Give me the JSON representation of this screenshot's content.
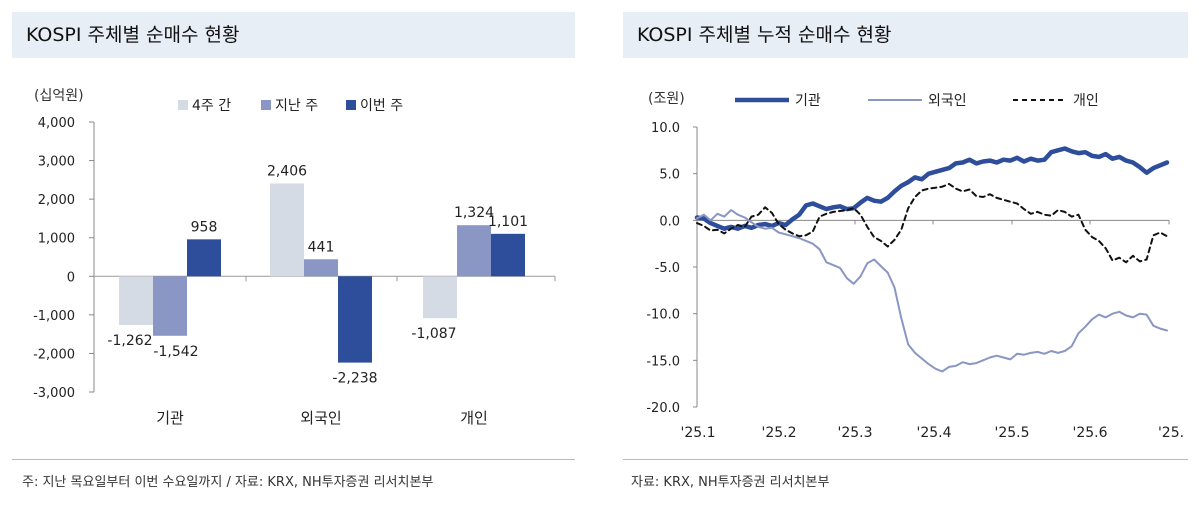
{
  "left": {
    "title": "KOSPI 주체별 순매수 현황",
    "unit": "(십억원)",
    "footnote": "주: 지난 목요일부터 이번 수요일까지 / 자료: KRX, NH투자증권 리서치본부"
  },
  "right": {
    "title": "KOSPI 주체별 누적 순매수 현황",
    "unit": "(조원)",
    "footnote": "자료: KRX, NH투자증권 리서치본부"
  },
  "colors": {
    "four_weeks": "#d5dbe4",
    "last_week": "#8a96c4",
    "this_week": "#2e4e9b",
    "institution": "#2e4e9b",
    "foreign": "#8a96c4",
    "individual": "#111111"
  },
  "chart_data": [
    {
      "type": "bar",
      "categories": [
        "기관",
        "외국인",
        "개인"
      ],
      "series": [
        {
          "name": "4주 간",
          "values": [
            -1262,
            2406,
            -1087
          ]
        },
        {
          "name": "지난 주",
          "values": [
            -1542,
            441,
            1324
          ]
        },
        {
          "name": "이번 주",
          "values": [
            958,
            -2238,
            1101
          ]
        }
      ],
      "data_labels": [
        [
          "-1,262",
          "2,406",
          "-1,087"
        ],
        [
          "-1,542",
          "441",
          "1,324"
        ],
        [
          "958",
          "-2,238",
          "1,101"
        ]
      ],
      "ylim": [
        -3000,
        4000
      ],
      "yticks": [
        4000,
        3000,
        2000,
        1000,
        0,
        -1000,
        -2000,
        -3000
      ],
      "ytick_labels": [
        "4,000",
        "3,000",
        "2,000",
        "1,000",
        "0",
        "-1,000",
        "-2,000",
        "-3,000"
      ],
      "legend": "top"
    },
    {
      "type": "line",
      "x_labels": [
        "'25.1",
        "'25.2",
        "'25.3",
        "'25.4",
        "'25.5",
        "'25.6",
        "'25."
      ],
      "ylim": [
        -20,
        10
      ],
      "yticks": [
        10,
        5,
        0,
        -5,
        -10,
        -15,
        -20
      ],
      "ytick_labels": [
        "10.0",
        "5.0",
        "0.0",
        "-5.0",
        "-10.0",
        "-15.0",
        "-20.0"
      ],
      "legend": "top",
      "series": [
        {
          "name": "기관",
          "values": [
            0.3,
            0.2,
            -0.3,
            -0.6,
            -0.9,
            -0.7,
            -0.9,
            -0.6,
            -0.8,
            -0.5,
            -0.4,
            -0.6,
            -0.3,
            -0.5,
            0.1,
            0.6,
            1.6,
            1.8,
            1.5,
            1.2,
            1.4,
            1.5,
            1.2,
            1.3,
            1.9,
            2.4,
            2.1,
            2.0,
            2.4,
            3.1,
            3.7,
            4.1,
            4.6,
            4.4,
            5.0,
            5.2,
            5.4,
            5.6,
            6.1,
            6.2,
            6.5,
            6.1,
            6.3,
            6.4,
            6.2,
            6.5,
            6.4,
            6.7,
            6.3,
            6.6,
            6.4,
            6.5,
            7.3,
            7.5,
            7.7,
            7.4,
            7.2,
            7.3,
            6.9,
            6.8,
            7.1,
            6.6,
            6.8,
            6.4,
            6.2,
            5.7,
            5.1,
            5.6,
            5.9,
            6.2
          ]
        },
        {
          "name": "외국인",
          "values": [
            0.2,
            0.6,
            0.0,
            0.7,
            0.4,
            1.1,
            0.6,
            0.3,
            -0.2,
            -0.7,
            -0.9,
            -0.8,
            -1.3,
            -1.5,
            -1.7,
            -1.9,
            -2.2,
            -2.5,
            -3.1,
            -4.5,
            -4.8,
            -5.1,
            -6.2,
            -6.8,
            -6.0,
            -4.6,
            -4.2,
            -4.9,
            -5.6,
            -7.2,
            -10.5,
            -13.3,
            -14.2,
            -14.8,
            -15.4,
            -15.9,
            -16.2,
            -15.7,
            -15.6,
            -15.2,
            -15.4,
            -15.3,
            -15.0,
            -14.7,
            -14.5,
            -14.7,
            -14.9,
            -14.3,
            -14.4,
            -14.2,
            -14.1,
            -14.3,
            -14.0,
            -14.2,
            -14.0,
            -13.5,
            -12.1,
            -11.4,
            -10.6,
            -10.1,
            -10.4,
            -10.0,
            -9.8,
            -10.2,
            -10.4,
            -10.0,
            -10.1,
            -11.3,
            -11.6,
            -11.8
          ]
        },
        {
          "name": "개인",
          "values": [
            -0.3,
            -0.6,
            -1.1,
            -1.0,
            -1.4,
            -0.9,
            -0.5,
            -0.7,
            0.4,
            0.6,
            1.4,
            0.8,
            -0.4,
            -1.0,
            -1.4,
            -1.7,
            -1.6,
            -1.2,
            0.4,
            0.7,
            0.9,
            1.0,
            1.1,
            1.3,
            0.6,
            -0.7,
            -1.8,
            -2.2,
            -2.8,
            -2.1,
            -1.0,
            1.3,
            2.5,
            3.2,
            3.4,
            3.5,
            3.6,
            3.9,
            3.4,
            3.1,
            3.3,
            2.6,
            2.5,
            2.8,
            2.4,
            2.2,
            2.0,
            1.8,
            1.2,
            0.7,
            0.9,
            0.6,
            0.5,
            1.1,
            0.9,
            0.4,
            0.6,
            -1.0,
            -1.8,
            -2.2,
            -3.0,
            -4.3,
            -4.0,
            -4.5,
            -3.8,
            -4.4,
            -4.2,
            -1.6,
            -1.3,
            -1.7
          ]
        }
      ]
    }
  ]
}
